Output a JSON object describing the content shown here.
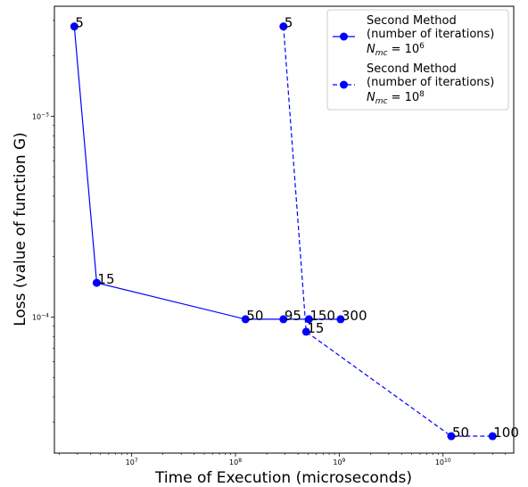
{
  "chart_data": {
    "type": "line",
    "title": "",
    "xlabel": "Time of Execution (microseconds)",
    "ylabel": "Loss (value of function G)",
    "xscale": "log",
    "yscale": "log",
    "xlim": [
      1800000,
      48000000000
    ],
    "ylim": [
      2.1e-05,
      0.00353
    ],
    "x_ticks": [
      {
        "value": 10000000,
        "base": "10",
        "exp": "7"
      },
      {
        "value": 100000000,
        "base": "10",
        "exp": "8"
      },
      {
        "value": 1000000000,
        "base": "10",
        "exp": "9"
      },
      {
        "value": 10000000000,
        "base": "10",
        "exp": "10"
      }
    ],
    "y_ticks": [
      {
        "value": 0.0001,
        "base": "10",
        "exp": "−4"
      },
      {
        "value": 0.001,
        "base": "10",
        "exp": "−3"
      }
    ],
    "grid": false,
    "legend_position": "top-right",
    "series": [
      {
        "color": "#0000ff",
        "linestyle": "solid",
        "legend_lines": [
          "Second Method",
          "(number of iterations)"
        ],
        "legend_formula": {
          "sym": "N",
          "sub": "mc",
          "eq": " = 10",
          "sup": "6"
        },
        "points": [
          {
            "x": 2800000,
            "y": 0.0028,
            "label": "5"
          },
          {
            "x": 4600000,
            "y": 0.000148,
            "label": "15"
          },
          {
            "x": 125000000,
            "y": 9.75e-05,
            "label": "50"
          },
          {
            "x": 290000000,
            "y": 9.75e-05,
            "label": "95"
          },
          {
            "x": 510000000,
            "y": 9.75e-05,
            "label": "150"
          },
          {
            "x": 1030000000,
            "y": 9.75e-05,
            "label": "300"
          }
        ]
      },
      {
        "color": "#0000ff",
        "linestyle": "dashed",
        "legend_lines": [
          "Second Method",
          "(number of iterations)"
        ],
        "legend_formula": {
          "sym": "N",
          "sub": "mc",
          "eq": " = 10",
          "sup": "8"
        },
        "points": [
          {
            "x": 290000000,
            "y": 0.0028,
            "label": "5"
          },
          {
            "x": 480000000,
            "y": 8.45e-05,
            "label": "15"
          },
          {
            "x": 12000000000,
            "y": 2.55e-05,
            "label": "50"
          },
          {
            "x": 30000000000,
            "y": 2.55e-05,
            "label": "100"
          }
        ]
      }
    ]
  }
}
